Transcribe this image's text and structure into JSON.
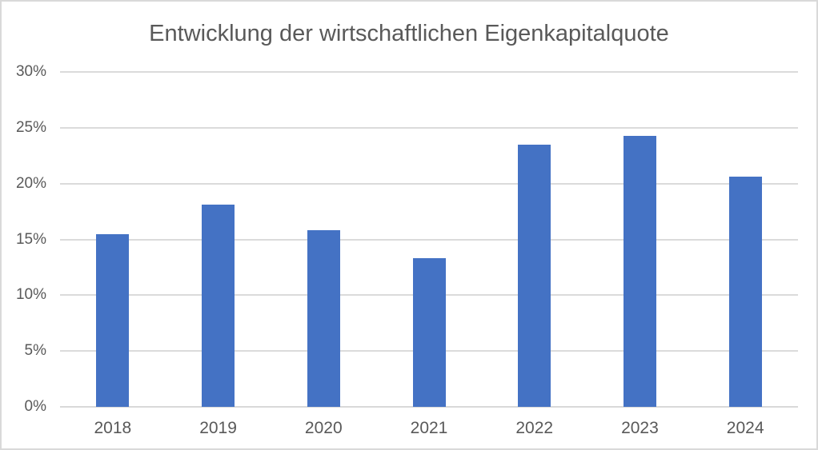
{
  "chart_data": {
    "type": "bar",
    "title": "Entwicklung der wirtschaftlichen Eigenkapitalquote",
    "categories": [
      "2018",
      "2019",
      "2020",
      "2021",
      "2022",
      "2023",
      "2024"
    ],
    "values": [
      15.5,
      18.1,
      15.8,
      13.3,
      23.5,
      24.3,
      20.6
    ],
    "unit": "%",
    "xlabel": "",
    "ylabel": "",
    "ylim": [
      0,
      30
    ],
    "yticks": [
      0,
      5,
      10,
      15,
      20,
      25,
      30
    ],
    "ytick_labels": [
      "0%",
      "5%",
      "10%",
      "15%",
      "20%",
      "25%",
      "30%"
    ],
    "grid": true,
    "legend": false,
    "data_labels": false,
    "colors": {
      "bar": "#4472C4",
      "gridline": "#DBDBDB",
      "axis_line": "#D9D9D9",
      "axis_text": "#595959",
      "title_text": "#595959",
      "border": "#D9D9D9",
      "background": "#FFFFFF"
    }
  }
}
